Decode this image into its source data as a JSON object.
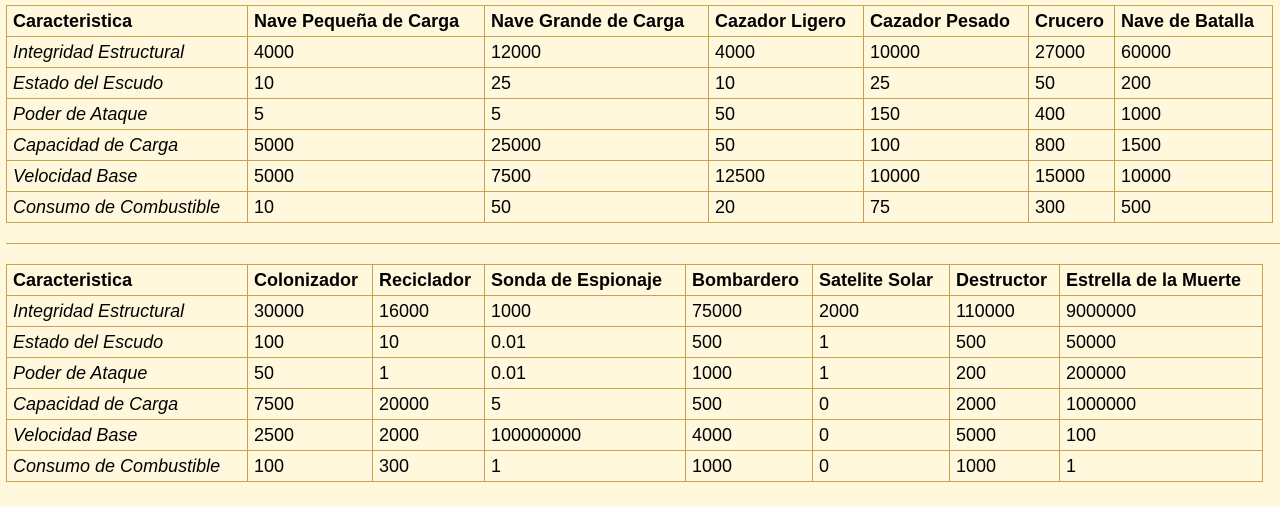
{
  "tables": [
    {
      "header": [
        "Caracteristica",
        "Nave Pequeña de Carga",
        "Nave Grande de Carga",
        "Cazador Ligero",
        "Cazador Pesado",
        "Crucero",
        "Nave de Batalla"
      ],
      "rows": [
        [
          "Integridad Estructural",
          "4000",
          "12000",
          "4000",
          "10000",
          "27000",
          "60000"
        ],
        [
          "Estado del Escudo",
          "10",
          "25",
          "10",
          "25",
          "50",
          "200"
        ],
        [
          "Poder de Ataque",
          "5",
          "5",
          "50",
          "150",
          "400",
          "1000"
        ],
        [
          "Capacidad de Carga",
          "5000",
          "25000",
          "50",
          "100",
          "800",
          "1500"
        ],
        [
          "Velocidad Base",
          "5000",
          "7500",
          "12500",
          "10000",
          "15000",
          "10000"
        ],
        [
          "Consumo de Combustible",
          "10",
          "50",
          "20",
          "75",
          "300",
          "500"
        ]
      ]
    },
    {
      "header": [
        "Caracteristica",
        "Colonizador",
        "Reciclador",
        "Sonda de Espionaje",
        "Bombardero",
        "Satelite Solar",
        "Destructor",
        "Estrella de la Muerte"
      ],
      "rows": [
        [
          "Integridad Estructural",
          "30000",
          "16000",
          "1000",
          "75000",
          "2000",
          "110000",
          "9000000"
        ],
        [
          "Estado del Escudo",
          "100",
          "10",
          "0.01",
          "500",
          "1",
          "500",
          "50000"
        ],
        [
          "Poder de Ataque",
          "50",
          "1",
          "0.01",
          "1000",
          "1",
          "200",
          "200000"
        ],
        [
          "Capacidad de Carga",
          "7500",
          "20000",
          "5",
          "500",
          "0",
          "2000",
          "1000000"
        ],
        [
          "Velocidad Base",
          "2500",
          "2000",
          "100000000",
          "4000",
          "0",
          "5000",
          "100"
        ],
        [
          "Consumo de Combustible",
          "100",
          "300",
          "1",
          "1000",
          "0",
          "1000",
          "1"
        ]
      ]
    }
  ]
}
